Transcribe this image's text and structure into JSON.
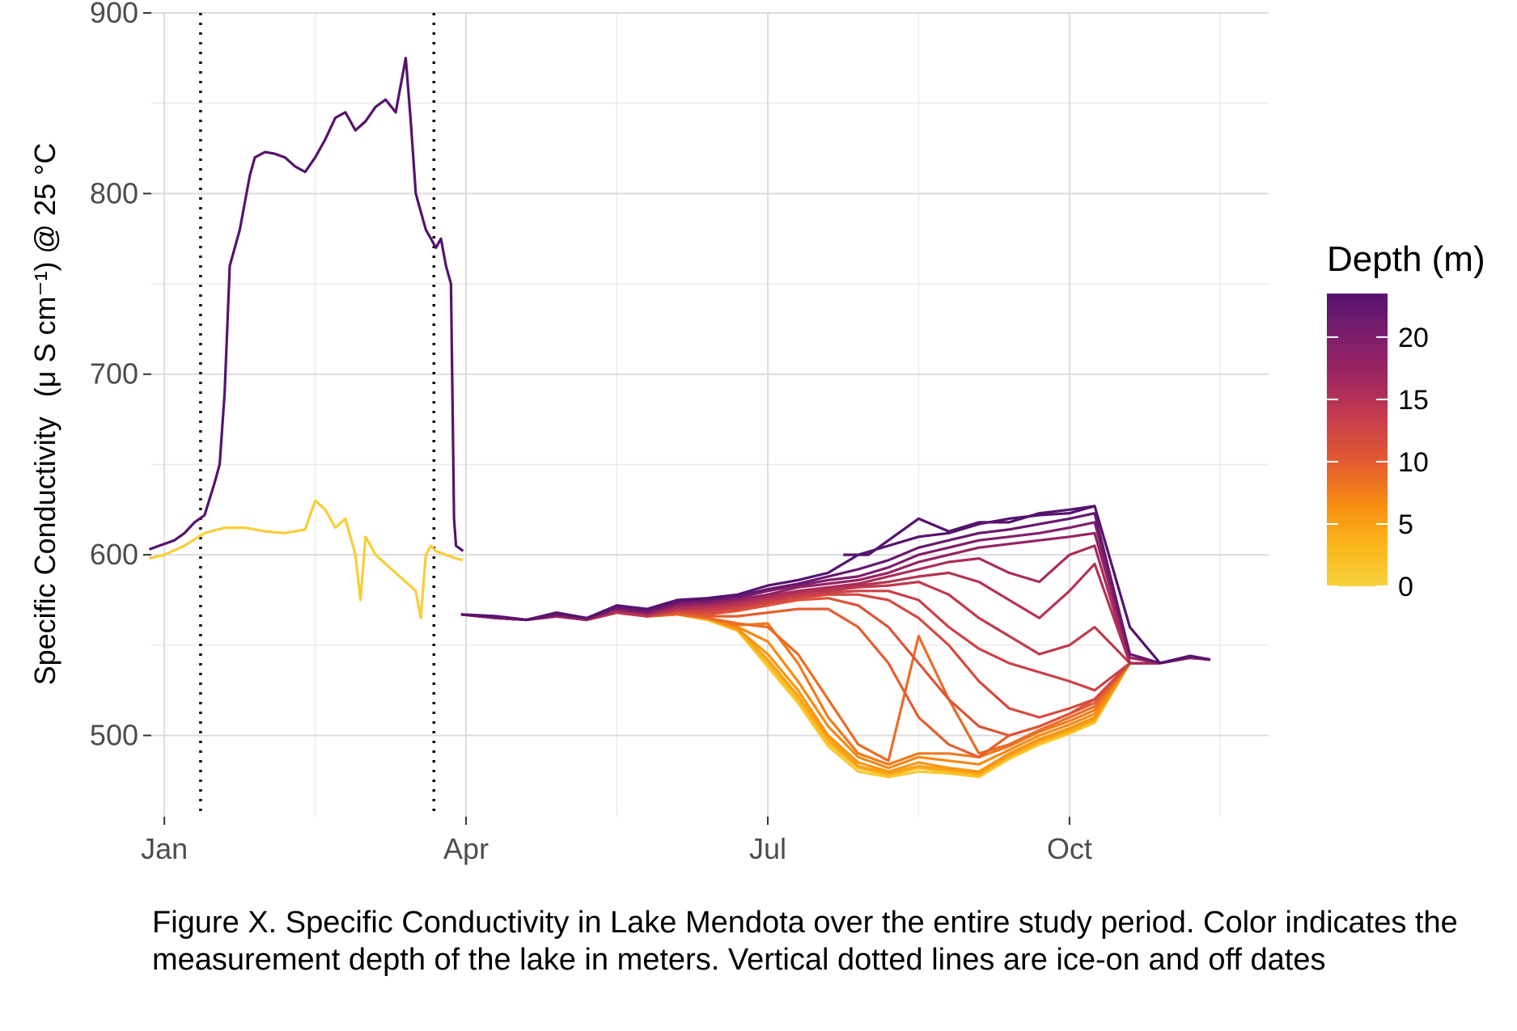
{
  "caption": "Figure X. Specific Conductivity in Lake Mendota over the entire study period. Color indicates the measurement depth of the lake in meters. Vertical dotted lines are ice-on and off dates",
  "chart_data": {
    "type": "line",
    "ylabel_main": "Specific Conductivity",
    "ylabel_units": "(μ S cm⁻¹) @ 25 °C",
    "xlabel": "",
    "x_unit": "date (month.fraction of year, Jan 1 = 1.0)",
    "xlim": [
      0.87,
      11.98
    ],
    "ylim": [
      455,
      900
    ],
    "x_ticks": [
      {
        "x": 1.0,
        "label": "Jan"
      },
      {
        "x": 4.0,
        "label": "Apr"
      },
      {
        "x": 7.0,
        "label": "Jul"
      },
      {
        "x": 10.0,
        "label": "Oct"
      }
    ],
    "x_minor": [
      2.5,
      5.5,
      8.5,
      11.5
    ],
    "y_ticks": [
      500,
      600,
      700,
      800,
      900
    ],
    "y_minor": [
      550,
      650,
      750,
      850
    ],
    "grid": true,
    "ice_dates": [
      1.36,
      3.68
    ],
    "legend": {
      "title": "Depth (m)",
      "position": "right",
      "range": [
        0,
        23.5
      ],
      "ticks": [
        0,
        5,
        10,
        15,
        20
      ],
      "colors": [
        "#f7d13d",
        "#fbb61a",
        "#f68d12",
        "#e55c30",
        "#c73e4c",
        "#a1265e",
        "#7e1e6c",
        "#55136e"
      ]
    },
    "series": [
      {
        "depth": 23.5,
        "x": [
          0.85,
          0.95,
          1.1,
          1.2,
          1.3,
          1.4,
          1.5,
          1.55,
          1.6,
          1.65,
          1.7,
          1.75,
          1.8,
          1.85,
          1.9,
          2.0,
          2.1,
          2.2,
          2.3,
          2.4,
          2.5,
          2.6,
          2.7,
          2.8,
          2.9,
          3.0,
          3.1,
          3.2,
          3.3,
          3.35,
          3.4,
          3.45,
          3.5,
          3.55,
          3.6,
          3.65,
          3.7,
          3.75,
          3.8,
          3.85,
          3.88,
          3.9,
          3.95,
          3.97
        ],
        "y": [
          603,
          605,
          608,
          612,
          618,
          622,
          640,
          650,
          690,
          760,
          770,
          780,
          795,
          810,
          820,
          823,
          822,
          820,
          815,
          812,
          820,
          830,
          842,
          845,
          835,
          840,
          848,
          852,
          845,
          860,
          875,
          840,
          800,
          790,
          780,
          775,
          770,
          775,
          760,
          750,
          620,
          605,
          603,
          602
        ]
      },
      {
        "depth": 0.5,
        "x": [
          0.85,
          1.0,
          1.2,
          1.4,
          1.6,
          1.8,
          2.0,
          2.2,
          2.4,
          2.5,
          2.6,
          2.7,
          2.8,
          2.9,
          2.95,
          3.0,
          3.1,
          3.2,
          3.3,
          3.4,
          3.5,
          3.55,
          3.6,
          3.65,
          3.7,
          3.8,
          3.9,
          3.97
        ],
        "y": [
          598,
          600,
          605,
          612,
          615,
          615,
          613,
          612,
          614,
          630,
          625,
          615,
          620,
          600,
          575,
          610,
          600,
          595,
          590,
          585,
          580,
          565,
          600,
          605,
          602,
          600,
          598,
          597
        ]
      },
      {
        "depth": 23.5,
        "x": [
          3.95,
          4.3,
          4.6,
          4.9,
          5.2,
          5.5,
          5.8,
          6.1,
          6.4,
          6.7,
          7.0,
          7.3,
          7.6,
          7.9,
          8.2,
          8.5,
          8.8,
          9.1,
          9.4,
          9.7,
          10.0,
          10.25,
          10.6,
          10.9,
          11.2,
          11.4
        ],
        "y": [
          567,
          566,
          564,
          568,
          565,
          572,
          570,
          575,
          576,
          578,
          583,
          586,
          590,
          600,
          605,
          610,
          612,
          617,
          620,
          622,
          623,
          627,
          560,
          540,
          544,
          542
        ]
      },
      {
        "depth": 22,
        "x": [
          3.95,
          4.3,
          4.6,
          4.9,
          5.2,
          5.5,
          5.8,
          6.1,
          6.4,
          6.7,
          7.0,
          7.3,
          7.6,
          7.9,
          8.2,
          8.5,
          8.8,
          9.1,
          9.4,
          9.7,
          10.0,
          10.25,
          10.6,
          10.9,
          11.2,
          11.4
        ],
        "y": [
          567,
          566,
          564,
          567,
          565,
          571,
          569,
          574,
          575,
          577,
          581,
          584,
          588,
          592,
          597,
          604,
          608,
          612,
          614,
          617,
          620,
          623,
          545,
          540,
          544,
          542
        ]
      },
      {
        "depth": 20,
        "x": [
          3.95,
          4.3,
          4.6,
          4.9,
          5.2,
          5.5,
          5.8,
          6.1,
          6.4,
          6.7,
          7.0,
          7.3,
          7.6,
          7.9,
          8.2,
          8.5,
          8.8,
          9.1,
          9.4,
          9.7,
          10.0,
          10.25,
          10.6,
          10.9,
          11.2,
          11.4
        ],
        "y": [
          567,
          565,
          564,
          567,
          565,
          570,
          568,
          573,
          574,
          576,
          580,
          583,
          586,
          588,
          593,
          600,
          604,
          608,
          610,
          612,
          615,
          618,
          545,
          540,
          543,
          542
        ]
      },
      {
        "depth": 18,
        "x": [
          3.95,
          4.3,
          4.6,
          4.9,
          5.2,
          5.5,
          5.8,
          6.1,
          6.4,
          6.7,
          7.0,
          7.3,
          7.6,
          7.9,
          8.2,
          8.5,
          8.8,
          9.1,
          9.4,
          9.7,
          10.0,
          10.25,
          10.6,
          10.9,
          11.2,
          11.4
        ],
        "y": [
          567,
          565,
          564,
          566,
          564,
          570,
          568,
          572,
          573,
          575,
          578,
          582,
          584,
          586,
          590,
          596,
          600,
          604,
          606,
          608,
          610,
          612,
          543,
          540,
          543,
          542
        ]
      },
      {
        "depth": 16,
        "x": [
          3.95,
          4.3,
          4.6,
          4.9,
          5.2,
          5.5,
          5.8,
          6.1,
          6.4,
          6.7,
          7.0,
          7.3,
          7.6,
          7.9,
          8.2,
          8.5,
          8.8,
          9.1,
          9.4,
          9.7,
          10.0,
          10.25,
          10.6,
          10.9,
          11.2,
          11.4
        ],
        "y": [
          567,
          565,
          564,
          566,
          564,
          569,
          567,
          571,
          572,
          574,
          577,
          580,
          582,
          584,
          588,
          592,
          596,
          598,
          590,
          585,
          600,
          605,
          540,
          540,
          543,
          542
        ]
      },
      {
        "depth": 15,
        "x": [
          3.95,
          4.3,
          4.6,
          4.9,
          5.2,
          5.5,
          5.8,
          6.1,
          6.4,
          6.7,
          7.0,
          7.3,
          7.6,
          7.9,
          8.2,
          8.5,
          8.8,
          9.1,
          9.4,
          9.7,
          10.0,
          10.25,
          10.6,
          10.9,
          11.2,
          11.4
        ],
        "y": [
          567,
          565,
          564,
          566,
          564,
          569,
          567,
          570,
          571,
          573,
          576,
          579,
          581,
          583,
          585,
          588,
          590,
          585,
          575,
          565,
          580,
          595,
          540,
          540,
          543,
          542
        ]
      },
      {
        "depth": 14,
        "x": [
          3.95,
          4.3,
          4.6,
          4.9,
          5.2,
          5.5,
          5.8,
          6.1,
          6.4,
          6.7,
          7.0,
          7.3,
          7.6,
          7.9,
          8.2,
          8.5,
          8.8,
          9.1,
          9.4,
          9.7,
          10.0,
          10.25,
          10.6,
          10.9,
          11.2,
          11.4
        ],
        "y": [
          567,
          565,
          564,
          566,
          564,
          568,
          566,
          570,
          570,
          572,
          575,
          578,
          580,
          582,
          583,
          585,
          578,
          565,
          555,
          545,
          550,
          560,
          540,
          540,
          543,
          542
        ]
      },
      {
        "depth": 13,
        "x": [
          3.95,
          4.3,
          4.6,
          4.9,
          5.2,
          5.5,
          5.8,
          6.1,
          6.4,
          6.7,
          7.0,
          7.3,
          7.6,
          7.9,
          8.2,
          8.5,
          8.8,
          9.1,
          9.4,
          9.7,
          10.0,
          10.25,
          10.6,
          10.9,
          11.2,
          11.4
        ],
        "y": [
          567,
          565,
          564,
          566,
          564,
          568,
          566,
          569,
          569,
          571,
          574,
          577,
          579,
          580,
          580,
          575,
          560,
          548,
          540,
          535,
          530,
          525,
          540,
          540,
          543,
          542
        ]
      },
      {
        "depth": 12,
        "x": [
          3.95,
          4.3,
          4.6,
          4.9,
          5.2,
          5.5,
          5.8,
          6.1,
          6.4,
          6.7,
          7.0,
          7.3,
          7.6,
          7.9,
          8.2,
          8.5,
          8.8,
          9.1,
          9.4,
          9.7,
          10.0,
          10.25,
          10.6,
          10.9,
          11.2,
          11.4
        ],
        "y": [
          567,
          565,
          564,
          566,
          564,
          568,
          566,
          569,
          568,
          570,
          573,
          576,
          578,
          578,
          575,
          565,
          550,
          530,
          515,
          510,
          515,
          520,
          540,
          540,
          543,
          542
        ]
      },
      {
        "depth": 11,
        "x": [
          3.95,
          4.3,
          4.6,
          4.9,
          5.2,
          5.5,
          5.8,
          6.1,
          6.4,
          6.7,
          7.0,
          7.3,
          7.6,
          7.9,
          8.2,
          8.5,
          8.8,
          9.1,
          9.4,
          9.7,
          10.0,
          10.25,
          10.6,
          10.9,
          11.2,
          11.4
        ],
        "y": [
          567,
          565,
          564,
          566,
          564,
          568,
          566,
          568,
          567,
          569,
          572,
          575,
          576,
          572,
          560,
          540,
          520,
          505,
          500,
          505,
          512,
          520,
          540,
          540,
          543,
          542
        ]
      },
      {
        "depth": 10,
        "x": [
          3.95,
          4.3,
          4.6,
          4.9,
          5.2,
          5.5,
          5.8,
          6.1,
          6.4,
          6.7,
          7.0,
          7.3,
          7.6,
          7.9,
          8.2,
          8.5,
          8.8,
          9.1,
          9.4,
          9.7,
          10.0,
          10.25,
          10.6,
          10.9,
          11.2,
          11.4
        ],
        "y": [
          567,
          565,
          564,
          566,
          564,
          568,
          566,
          568,
          566,
          566,
          568,
          570,
          570,
          560,
          540,
          510,
          495,
          488,
          500,
          505,
          512,
          518,
          540,
          540,
          543,
          542
        ]
      },
      {
        "depth": 9,
        "x": [
          3.95,
          4.3,
          4.6,
          4.9,
          5.2,
          5.5,
          5.8,
          6.1,
          6.4,
          6.7,
          7.0,
          7.3,
          7.6,
          7.9,
          8.2,
          8.5,
          8.8,
          9.1,
          9.4,
          9.7,
          10.0,
          10.25,
          10.6,
          10.9,
          11.2,
          11.4
        ],
        "y": [
          567,
          565,
          564,
          566,
          564,
          568,
          566,
          567,
          565,
          562,
          560,
          545,
          520,
          495,
          486,
          555,
          520,
          490,
          495,
          503,
          510,
          516,
          540,
          540,
          543,
          542
        ]
      },
      {
        "depth": 8,
        "x": [
          3.95,
          4.3,
          4.6,
          4.9,
          5.2,
          5.5,
          5.8,
          6.1,
          6.4,
          6.7,
          7.0,
          7.3,
          7.6,
          7.9,
          8.2,
          8.5,
          8.8,
          9.1,
          9.4,
          9.7,
          10.0,
          10.25,
          10.6,
          10.9,
          11.2,
          11.4
        ],
        "y": [
          567,
          565,
          564,
          566,
          564,
          568,
          566,
          567,
          565,
          561,
          562,
          540,
          510,
          490,
          484,
          490,
          490,
          488,
          494,
          502,
          508,
          514,
          540,
          540,
          543,
          542
        ]
      },
      {
        "depth": 7,
        "x": [
          3.95,
          4.3,
          4.6,
          4.9,
          5.2,
          5.5,
          5.8,
          6.1,
          6.4,
          6.7,
          7.0,
          7.3,
          7.6,
          7.9,
          8.2,
          8.5,
          8.8,
          9.1,
          9.4,
          9.7,
          10.0,
          10.25,
          10.6,
          10.9,
          11.2,
          11.4
        ],
        "y": [
          567,
          565,
          564,
          566,
          564,
          568,
          566,
          567,
          565,
          560,
          552,
          530,
          505,
          488,
          482,
          488,
          486,
          484,
          492,
          500,
          506,
          512,
          540,
          540,
          543,
          542
        ]
      },
      {
        "depth": 6,
        "x": [
          3.95,
          4.3,
          4.6,
          4.9,
          5.2,
          5.5,
          5.8,
          6.1,
          6.4,
          6.7,
          7.0,
          7.3,
          7.6,
          7.9,
          8.2,
          8.5,
          8.8,
          9.1,
          9.4,
          9.7,
          10.0,
          10.25,
          10.6,
          10.9,
          11.2,
          11.4
        ],
        "y": [
          567,
          565,
          564,
          566,
          564,
          568,
          566,
          567,
          565,
          559,
          545,
          525,
          500,
          485,
          480,
          485,
          482,
          480,
          490,
          498,
          504,
          510,
          540,
          540,
          543,
          542
        ]
      },
      {
        "depth": 5,
        "x": [
          3.95,
          4.3,
          4.6,
          4.9,
          5.2,
          5.5,
          5.8,
          6.1,
          6.4,
          6.7,
          7.0,
          7.3,
          7.6,
          7.9,
          8.2,
          8.5,
          8.8,
          9.1,
          9.4,
          9.7,
          10.0,
          10.25,
          10.6,
          10.9,
          11.2,
          11.4
        ],
        "y": [
          567,
          565,
          564,
          566,
          564,
          568,
          566,
          567,
          565,
          559,
          542,
          522,
          498,
          483,
          479,
          483,
          481,
          479,
          489,
          497,
          503,
          509,
          540,
          540,
          543,
          542
        ]
      },
      {
        "depth": 3,
        "x": [
          3.95,
          4.3,
          4.6,
          4.9,
          5.2,
          5.5,
          5.8,
          6.1,
          6.4,
          6.7,
          7.0,
          7.3,
          7.6,
          7.9,
          8.2,
          8.5,
          8.8,
          9.1,
          9.4,
          9.7,
          10.0,
          10.25,
          10.6,
          10.9,
          11.2,
          11.4
        ],
        "y": [
          567,
          565,
          564,
          566,
          564,
          568,
          566,
          567,
          564,
          558,
          540,
          520,
          496,
          482,
          478,
          482,
          480,
          478,
          488,
          496,
          502,
          508,
          540,
          540,
          543,
          542
        ]
      },
      {
        "depth": 1,
        "x": [
          3.95,
          4.3,
          4.6,
          4.9,
          5.2,
          5.5,
          5.8,
          6.1,
          6.4,
          6.7,
          7.0,
          7.3,
          7.6,
          7.9,
          8.2,
          8.5,
          8.8,
          9.1,
          9.4,
          9.7,
          10.0,
          10.25,
          10.6,
          10.9,
          11.2,
          11.4
        ],
        "y": [
          567,
          565,
          564,
          566,
          564,
          568,
          566,
          567,
          564,
          558,
          538,
          518,
          494,
          480,
          477,
          480,
          479,
          477,
          487,
          495,
          501,
          507,
          540,
          540,
          543,
          542
        ]
      },
      {
        "depth": 23.5,
        "x": [
          7.75,
          8.0,
          8.5,
          8.8,
          9.1,
          9.4,
          9.7,
          10.0,
          10.25
        ],
        "y": [
          600,
          600,
          620,
          613,
          618,
          618,
          623,
          625,
          627
        ]
      }
    ]
  }
}
